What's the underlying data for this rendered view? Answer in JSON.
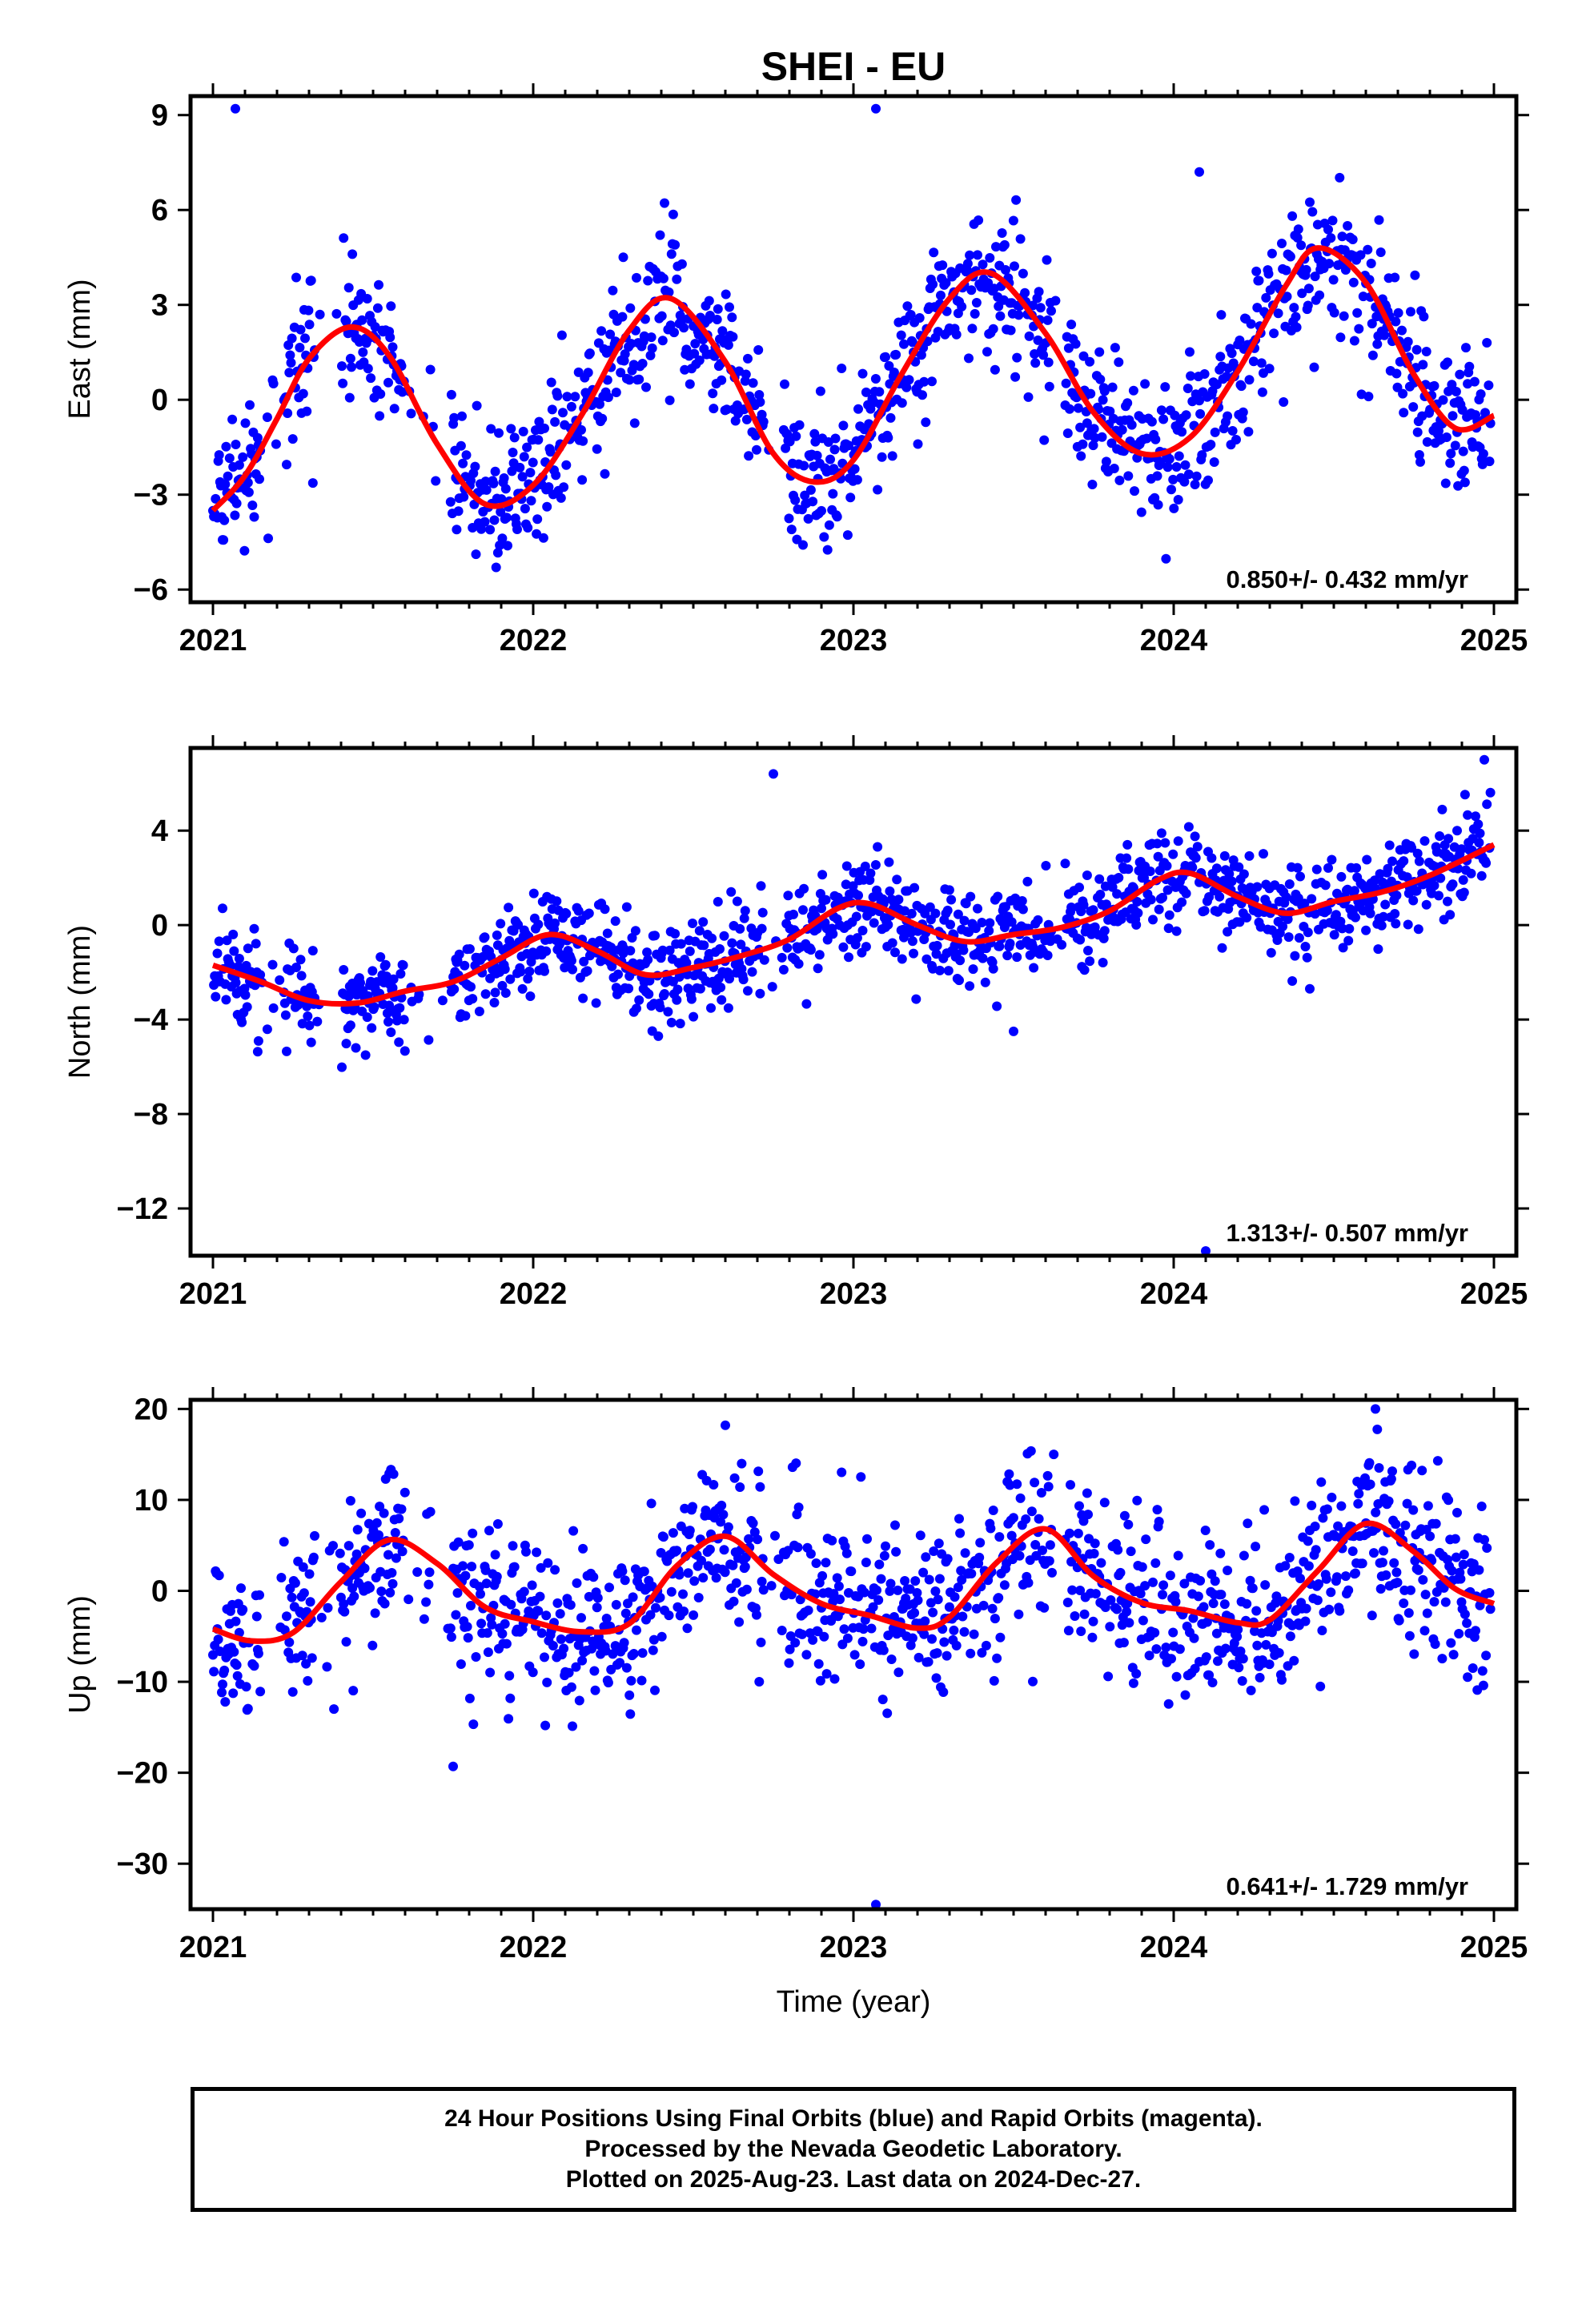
{
  "title": "SHEI - EU",
  "xlabel": "Time (year)",
  "footnote": {
    "line1": "24 Hour Positions Using Final Orbits (blue) and Rapid Orbits (magenta).",
    "line2": "Processed by the Nevada Geodetic Laboratory.",
    "line3": "Plotted on 2025-Aug-23. Last data on 2024-Dec-27."
  },
  "colors": {
    "points": "#0000ff",
    "fit": "#ff0000",
    "frame": "#000000"
  },
  "chart_data": [
    {
      "type": "scatter",
      "name": "east",
      "ylabel": "East (mm)",
      "xlim": [
        2020.93,
        2025.07
      ],
      "ylim": [
        -6.4,
        9.6
      ],
      "x_ticks": [
        2021,
        2022,
        2023,
        2024,
        2025
      ],
      "y_ticks": [
        -6,
        -3,
        0,
        3,
        6,
        9
      ],
      "rate_label": "0.850+/- 0.432 mm/yr",
      "fit": {
        "x": [
          2021.0,
          2021.1,
          2021.2,
          2021.3,
          2021.43,
          2021.55,
          2021.7,
          2021.85,
          2022.0,
          2022.15,
          2022.3,
          2022.43,
          2022.6,
          2022.75,
          2022.88,
          2023.0,
          2023.15,
          2023.3,
          2023.43,
          2023.6,
          2023.75,
          2023.9,
          2024.05,
          2024.2,
          2024.35,
          2024.45,
          2024.6,
          2024.75,
          2024.88,
          2025.0
        ],
        "y": [
          -3.5,
          -2.4,
          -0.6,
          1.3,
          2.3,
          1.4,
          -1.4,
          -3.3,
          -2.7,
          -0.5,
          2.2,
          3.2,
          1.2,
          -1.7,
          -2.6,
          -1.9,
          0.8,
          3.2,
          4.0,
          2.1,
          -0.4,
          -1.7,
          -1.2,
          0.9,
          3.6,
          4.8,
          3.7,
          0.8,
          -0.9,
          -0.5
        ]
      },
      "points": [
        [
          2021.07,
          9.2
        ],
        [
          2023.07,
          9.2
        ],
        [
          2024.08,
          7.2
        ]
      ]
    },
    {
      "type": "scatter",
      "name": "north",
      "ylabel": "North (mm)",
      "xlim": [
        2020.93,
        2025.07
      ],
      "ylim": [
        -14,
        7.5
      ],
      "x_ticks": [
        2021,
        2022,
        2023,
        2024,
        2025
      ],
      "y_ticks": [
        -12,
        -8,
        -4,
        0,
        4
      ],
      "rate_label": "1.313+/- 0.507 mm/yr",
      "fit": {
        "x": [
          2021.0,
          2021.15,
          2021.3,
          2021.45,
          2021.6,
          2021.75,
          2021.9,
          2022.05,
          2022.2,
          2022.35,
          2022.5,
          2022.65,
          2022.8,
          2022.95,
          2023.05,
          2023.2,
          2023.35,
          2023.5,
          2023.65,
          2023.8,
          2023.95,
          2024.05,
          2024.2,
          2024.35,
          2024.5,
          2024.65,
          2024.8,
          2025.0
        ],
        "y": [
          -1.7,
          -2.4,
          -3.2,
          -3.3,
          -2.8,
          -2.4,
          -1.4,
          -0.4,
          -1.1,
          -2.1,
          -1.8,
          -1.3,
          -0.6,
          0.7,
          0.9,
          0.0,
          -0.7,
          -0.4,
          -0.1,
          0.6,
          1.9,
          2.2,
          1.2,
          0.5,
          1.0,
          1.4,
          2.1,
          3.4
        ]
      },
      "points": [
        [
          2022.75,
          6.4
        ],
        [
          2024.97,
          7.0
        ],
        [
          2023.5,
          -4.5
        ],
        [
          2024.1,
          -13.8
        ]
      ]
    },
    {
      "type": "scatter",
      "name": "up",
      "ylabel": "Up (mm)",
      "xlim": [
        2020.93,
        2025.07
      ],
      "ylim": [
        -35,
        21
      ],
      "x_ticks": [
        2021,
        2022,
        2023,
        2024,
        2025
      ],
      "y_ticks": [
        -30,
        -20,
        -10,
        0,
        10,
        20
      ],
      "rate_label": "0.641+/- 1.729 mm/yr",
      "fit": {
        "x": [
          2021.0,
          2021.12,
          2021.25,
          2021.4,
          2021.55,
          2021.7,
          2021.85,
          2022.0,
          2022.15,
          2022.3,
          2022.45,
          2022.6,
          2022.75,
          2022.9,
          2023.05,
          2023.2,
          2023.3,
          2023.45,
          2023.6,
          2023.75,
          2023.9,
          2024.05,
          2024.2,
          2024.3,
          2024.45,
          2024.6,
          2024.75,
          2024.88,
          2025.0
        ],
        "y": [
          -4.2,
          -5.5,
          -4.6,
          1.0,
          5.6,
          3.0,
          -1.8,
          -3.4,
          -4.5,
          -3.6,
          2.8,
          6.0,
          1.8,
          -1.4,
          -2.7,
          -4.1,
          -2.9,
          3.2,
          6.8,
          1.6,
          -1.3,
          -2.2,
          -3.5,
          -3.2,
          2.2,
          7.4,
          4.3,
          0.2,
          -1.4
        ]
      },
      "points": [
        [
          2022.6,
          18.2
        ],
        [
          2024.63,
          20.0
        ],
        [
          2021.75,
          -19.3
        ],
        [
          2023.07,
          -34.5
        ]
      ]
    }
  ]
}
